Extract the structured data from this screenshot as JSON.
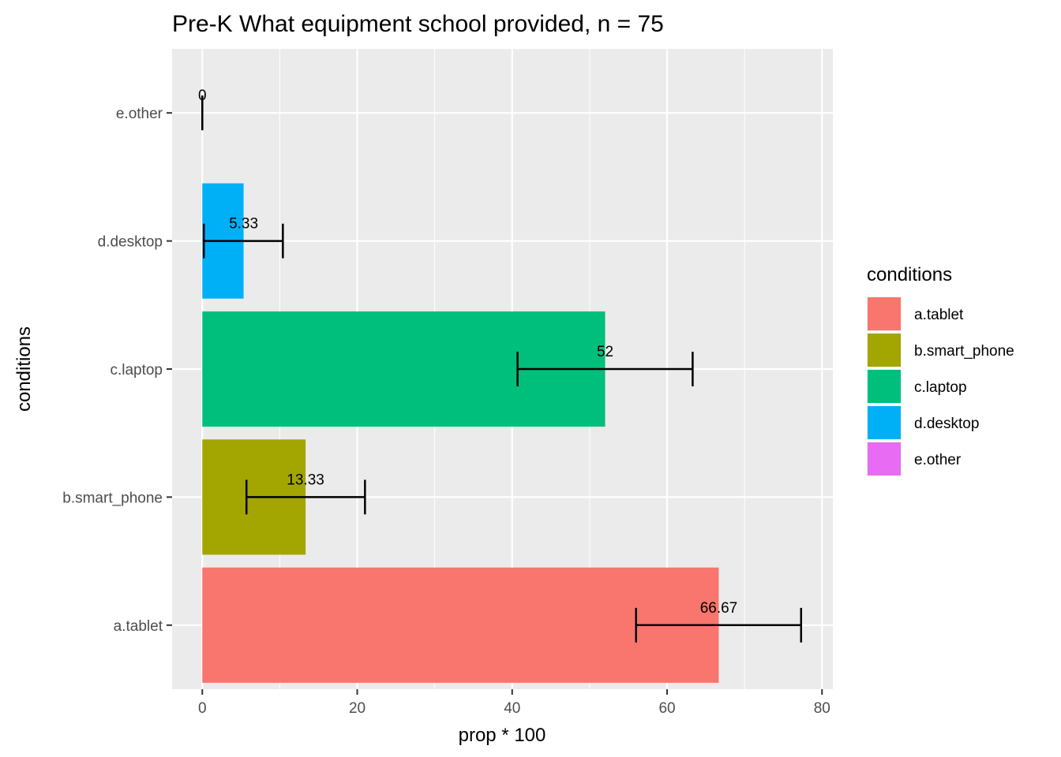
{
  "chart_data": {
    "type": "bar",
    "orientation": "horizontal",
    "title": "Pre-K What equipment school provided, n = 75",
    "xlabel": "prop * 100",
    "ylabel": "conditions",
    "xlim": [
      -3.9,
      81.4
    ],
    "x_ticks": [
      "0",
      "20",
      "40",
      "60",
      "80"
    ],
    "x_tick_values": [
      0,
      20,
      40,
      60,
      80
    ],
    "grid": true,
    "categories": [
      "a.tablet",
      "b.smart_phone",
      "c.laptop",
      "d.desktop",
      "e.other"
    ],
    "values": [
      66.67,
      13.33,
      52,
      5.33,
      0
    ],
    "value_labels": [
      "66.67",
      "13.33",
      "52",
      "5.33",
      "0"
    ],
    "error_low": [
      56.0,
      5.7,
      40.7,
      0.2,
      0
    ],
    "error_high": [
      77.3,
      21.0,
      63.3,
      10.4,
      0
    ],
    "colors": [
      "#F8766D",
      "#A3A500",
      "#00BF7D",
      "#00B0F6",
      "#E76BF3"
    ],
    "legend": {
      "title": "conditions",
      "position": "right",
      "items": [
        "a.tablet",
        "b.smart_phone",
        "c.laptop",
        "d.desktop",
        "e.other"
      ]
    }
  }
}
